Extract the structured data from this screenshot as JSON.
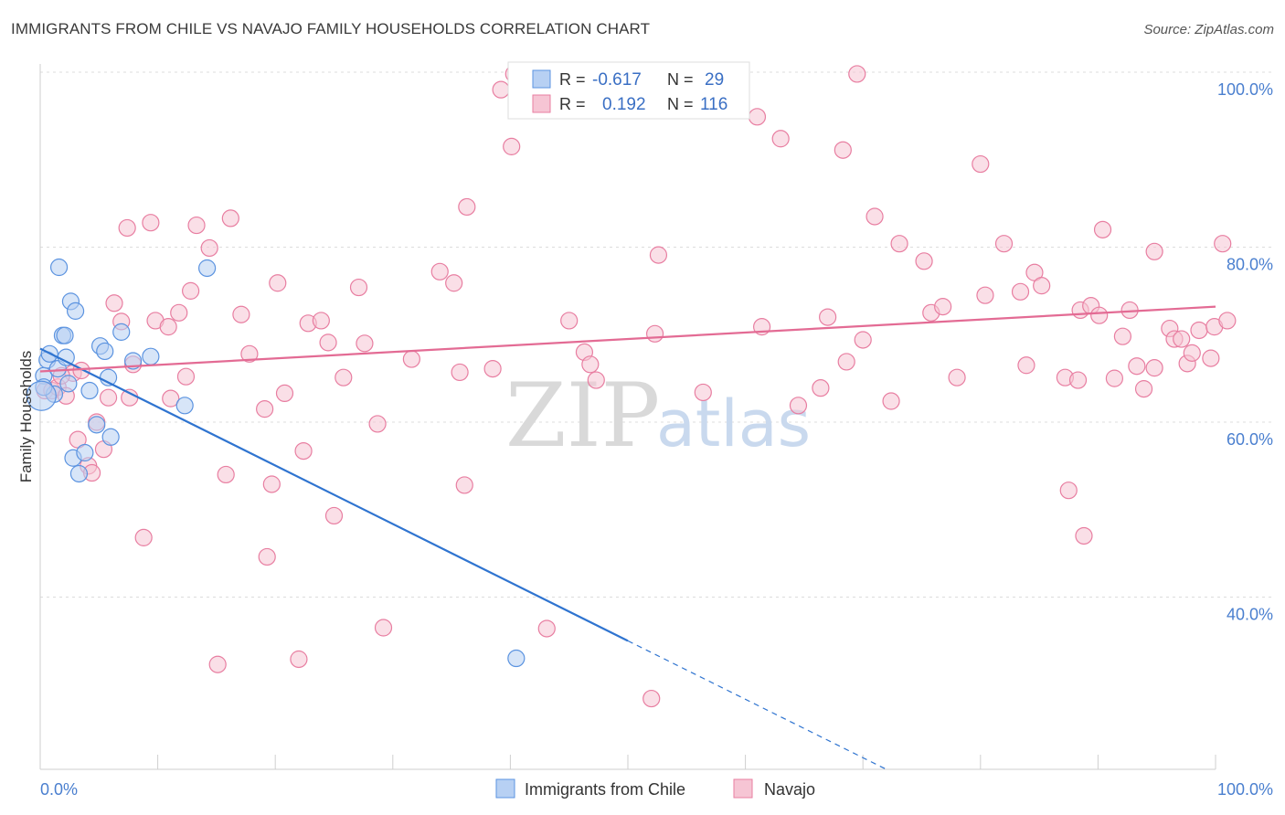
{
  "title": "IMMIGRANTS FROM CHILE VS NAVAJO FAMILY HOUSEHOLDS CORRELATION CHART",
  "source": "Source: ZipAtlas.com",
  "watermark": {
    "zip": "ZIP",
    "atlas": "atlas"
  },
  "colors": {
    "blue": "#5b93e0",
    "blue_fill": "#b7d0f3",
    "pink": "#e87ea1",
    "pink_fill": "#f6c5d4",
    "blue_line": "#2f74d0",
    "pink_line": "#e36b94"
  },
  "legend": {
    "r_label": "R =",
    "n_label": "N =",
    "rows": [
      {
        "r": "-0.617",
        "n": "29"
      },
      {
        "r": "0.192",
        "n": "116"
      }
    ]
  },
  "chart_data": {
    "type": "scatter",
    "ylabel": "Family Households",
    "xlim": [
      0,
      100
    ],
    "ylim": [
      20,
      100
    ],
    "x_ticks": [
      "0.0%",
      "100.0%"
    ],
    "y_ticks": [
      "100.0%",
      "80.0%",
      "60.0%",
      "40.0%"
    ],
    "y_tick_values": [
      100,
      80,
      60,
      40
    ],
    "series": [
      {
        "name": "Immigrants from Chile",
        "color": "blue",
        "trend": {
          "x0": 0,
          "y0": 68.4,
          "x1": 50,
          "y1": 35.0,
          "x_dash_end": 72
        },
        "points": [
          [
            0.3,
            65.3
          ],
          [
            0.6,
            67.1
          ],
          [
            0.8,
            67.8
          ],
          [
            1.2,
            63.2
          ],
          [
            1.5,
            66.1
          ],
          [
            1.6,
            77.7
          ],
          [
            1.9,
            69.9
          ],
          [
            2.1,
            69.9
          ],
          [
            2.2,
            67.4
          ],
          [
            2.4,
            64.4
          ],
          [
            2.6,
            73.8
          ],
          [
            2.8,
            55.9
          ],
          [
            3.0,
            72.7
          ],
          [
            3.3,
            54.1
          ],
          [
            3.8,
            56.5
          ],
          [
            4.2,
            63.6
          ],
          [
            4.8,
            59.7
          ],
          [
            5.1,
            68.7
          ],
          [
            5.5,
            68.1
          ],
          [
            5.8,
            65.1
          ],
          [
            6.0,
            58.3
          ],
          [
            6.9,
            70.3
          ],
          [
            7.9,
            67.0
          ],
          [
            9.4,
            67.5
          ],
          [
            12.3,
            61.9
          ],
          [
            14.2,
            77.6
          ],
          [
            0.3,
            64.0
          ],
          [
            40.5,
            33.0
          ],
          [
            0.1,
            63.0
          ]
        ]
      },
      {
        "name": "Navajo",
        "color": "pink",
        "trend": {
          "x0": 0,
          "y0": 65.8,
          "x1": 100,
          "y1": 73.2
        },
        "points": [
          [
            0.4,
            63.6
          ],
          [
            1.0,
            63.6
          ],
          [
            1.5,
            64.0
          ],
          [
            2.2,
            63.0
          ],
          [
            2.8,
            65.6
          ],
          [
            3.2,
            58.0
          ],
          [
            4.1,
            55.0
          ],
          [
            4.4,
            54.2
          ],
          [
            4.8,
            60.0
          ],
          [
            5.4,
            56.9
          ],
          [
            5.8,
            62.8
          ],
          [
            6.3,
            73.6
          ],
          [
            6.9,
            71.5
          ],
          [
            7.4,
            82.2
          ],
          [
            7.9,
            66.6
          ],
          [
            8.8,
            46.8
          ],
          [
            9.4,
            82.8
          ],
          [
            9.8,
            71.6
          ],
          [
            10.9,
            70.9
          ],
          [
            11.1,
            62.7
          ],
          [
            11.8,
            72.5
          ],
          [
            12.4,
            65.2
          ],
          [
            12.8,
            75.0
          ],
          [
            13.3,
            82.5
          ],
          [
            14.4,
            79.9
          ],
          [
            15.1,
            32.3
          ],
          [
            15.8,
            54.0
          ],
          [
            16.2,
            83.3
          ],
          [
            17.1,
            72.3
          ],
          [
            17.8,
            67.8
          ],
          [
            19.1,
            61.5
          ],
          [
            19.3,
            44.6
          ],
          [
            19.7,
            52.9
          ],
          [
            20.2,
            75.9
          ],
          [
            20.8,
            63.3
          ],
          [
            22.0,
            32.9
          ],
          [
            22.4,
            56.7
          ],
          [
            22.8,
            71.3
          ],
          [
            23.9,
            71.6
          ],
          [
            24.5,
            69.1
          ],
          [
            25.0,
            49.3
          ],
          [
            25.8,
            65.1
          ],
          [
            27.1,
            75.4
          ],
          [
            27.6,
            69.0
          ],
          [
            28.7,
            59.8
          ],
          [
            29.2,
            36.5
          ],
          [
            31.6,
            67.2
          ],
          [
            34.0,
            77.2
          ],
          [
            35.2,
            75.9
          ],
          [
            35.7,
            65.7
          ],
          [
            36.1,
            52.8
          ],
          [
            36.3,
            84.6
          ],
          [
            38.5,
            66.1
          ],
          [
            39.2,
            98.0
          ],
          [
            40.1,
            91.5
          ],
          [
            40.3,
            99.8
          ],
          [
            43.1,
            36.4
          ],
          [
            45.0,
            71.6
          ],
          [
            46.3,
            68.0
          ],
          [
            46.8,
            66.6
          ],
          [
            47.3,
            64.8
          ],
          [
            52.0,
            28.4
          ],
          [
            52.3,
            70.1
          ],
          [
            52.6,
            79.1
          ],
          [
            56.4,
            63.4
          ],
          [
            57.8,
            99.9
          ],
          [
            61.0,
            94.9
          ],
          [
            61.4,
            70.9
          ],
          [
            64.5,
            61.9
          ],
          [
            63.0,
            92.4
          ],
          [
            66.4,
            63.9
          ],
          [
            67.0,
            72.0
          ],
          [
            68.3,
            91.1
          ],
          [
            68.6,
            66.9
          ],
          [
            69.5,
            99.8
          ],
          [
            70.0,
            69.4
          ],
          [
            71.0,
            83.5
          ],
          [
            72.4,
            62.4
          ],
          [
            73.1,
            80.4
          ],
          [
            75.2,
            78.4
          ],
          [
            75.8,
            72.5
          ],
          [
            78.0,
            65.1
          ],
          [
            76.8,
            73.2
          ],
          [
            80.0,
            89.5
          ],
          [
            80.4,
            74.5
          ],
          [
            82.0,
            80.4
          ],
          [
            83.4,
            74.9
          ],
          [
            83.9,
            66.5
          ],
          [
            84.6,
            77.1
          ],
          [
            85.2,
            75.6
          ],
          [
            87.2,
            65.1
          ],
          [
            87.5,
            52.2
          ],
          [
            88.3,
            64.8
          ],
          [
            88.8,
            47.0
          ],
          [
            88.5,
            72.8
          ],
          [
            89.4,
            73.3
          ],
          [
            90.1,
            72.2
          ],
          [
            90.4,
            82.0
          ],
          [
            91.4,
            65.0
          ],
          [
            92.1,
            69.8
          ],
          [
            92.7,
            72.8
          ],
          [
            93.3,
            66.4
          ],
          [
            93.9,
            63.8
          ],
          [
            94.8,
            66.2
          ],
          [
            94.8,
            79.5
          ],
          [
            96.1,
            70.7
          ],
          [
            96.5,
            69.5
          ],
          [
            97.1,
            69.5
          ],
          [
            97.6,
            66.7
          ],
          [
            98.0,
            67.9
          ],
          [
            98.6,
            70.5
          ],
          [
            99.6,
            67.3
          ],
          [
            99.9,
            70.9
          ],
          [
            100.6,
            80.4
          ],
          [
            101.0,
            71.6
          ],
          [
            1.8,
            65.3
          ],
          [
            3.5,
            65.9
          ],
          [
            7.6,
            62.8
          ]
        ]
      }
    ],
    "legend_bottom": [
      "Immigrants from Chile",
      "Navajo"
    ]
  }
}
